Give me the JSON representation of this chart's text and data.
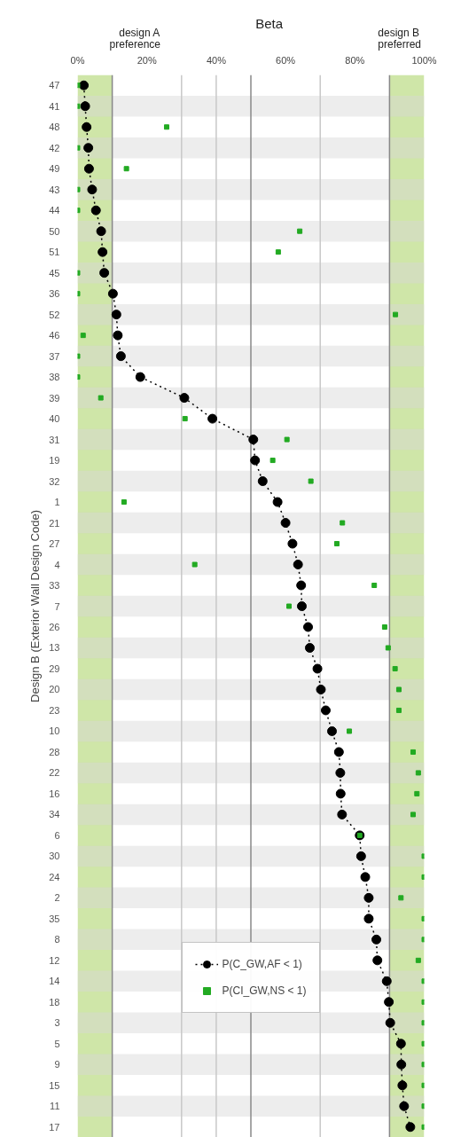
{
  "chart_data": {
    "type": "line",
    "orientation": "horizontal",
    "xlabel": "Beta",
    "ylabel": "Design B (Exterior Wall Design Code)",
    "categories": [
      "47",
      "41",
      "48",
      "42",
      "49",
      "43",
      "44",
      "50",
      "51",
      "45",
      "36",
      "52",
      "46",
      "37",
      "38",
      "39",
      "40",
      "31",
      "19",
      "32",
      "1",
      "21",
      "27",
      "4",
      "33",
      "7",
      "26",
      "13",
      "29",
      "20",
      "23",
      "10",
      "28",
      "22",
      "16",
      "34",
      "6",
      "30",
      "24",
      "2",
      "35",
      "8",
      "12",
      "14",
      "18",
      "3",
      "5",
      "9",
      "15",
      "11",
      "17"
    ],
    "series": [
      {
        "name": "P(C_GW,AF < 1)",
        "color": "#000000",
        "marker": "circle",
        "line_style": "dotted",
        "values": [
          1.8,
          2.2,
          2.6,
          3.1,
          3.3,
          4.2,
          5.3,
          6.8,
          7.2,
          7.7,
          10.2,
          11.2,
          11.6,
          12.5,
          18.1,
          30.8,
          38.9,
          50.7,
          51.2,
          53.4,
          57.7,
          60.0,
          62.0,
          63.6,
          64.5,
          64.7,
          66.5,
          67.0,
          69.2,
          70.2,
          71.6,
          73.4,
          75.4,
          75.8,
          75.9,
          76.3,
          81.4,
          81.8,
          83.0,
          84.0,
          84.0,
          86.2,
          86.5,
          89.2,
          89.8,
          90.2,
          93.3,
          93.4,
          93.7,
          94.2,
          96.0
        ]
      },
      {
        "name": "P(CI_GW,NS < 1)",
        "type": "scatter",
        "color": "#22aa22",
        "marker": "square",
        "values": [
          0,
          0,
          25.7,
          0,
          14.1,
          0,
          0,
          64.1,
          57.9,
          0,
          0,
          91.7,
          1.6,
          0,
          0,
          6.7,
          31.0,
          60.4,
          56.3,
          67.3,
          13.4,
          76.4,
          74.8,
          33.8,
          85.6,
          61.0,
          88.6,
          89.6,
          91.6,
          92.7,
          92.7,
          78.4,
          96.8,
          98.3,
          97.9,
          96.8,
          81.4,
          100,
          100,
          93.3,
          100,
          100,
          98.3,
          100,
          100,
          100,
          100,
          100,
          100,
          100,
          100
        ]
      }
    ],
    "xlim": [
      0,
      100
    ],
    "xticks": [
      {
        "value": 0,
        "label": "0%"
      },
      {
        "value": 20,
        "label": "20%"
      },
      {
        "value": 40,
        "label": "40%"
      },
      {
        "value": 60,
        "label": "60%"
      },
      {
        "value": 80,
        "label": "80%"
      },
      {
        "value": 100,
        "label": "100%"
      }
    ],
    "bands": [
      {
        "axis": "x",
        "from": 0,
        "to": 10,
        "label": "design A\npreference",
        "color": "#cfe6a8"
      },
      {
        "axis": "x",
        "from": 90,
        "to": 100,
        "label": "design B\npreferred",
        "color": "#cfe6a8"
      }
    ],
    "ref_lines": [
      {
        "axis": "x",
        "value": 10,
        "color": "#888888"
      },
      {
        "axis": "x",
        "value": 30,
        "color": "#c8c8c8"
      },
      {
        "axis": "x",
        "value": 40,
        "color": "#c8c8c8"
      },
      {
        "axis": "x",
        "value": 50,
        "color": "#888888"
      },
      {
        "axis": "x",
        "value": 70,
        "color": "#c8c8c8"
      },
      {
        "axis": "x",
        "value": 90,
        "color": "#888888"
      }
    ],
    "legend": "bottom"
  }
}
